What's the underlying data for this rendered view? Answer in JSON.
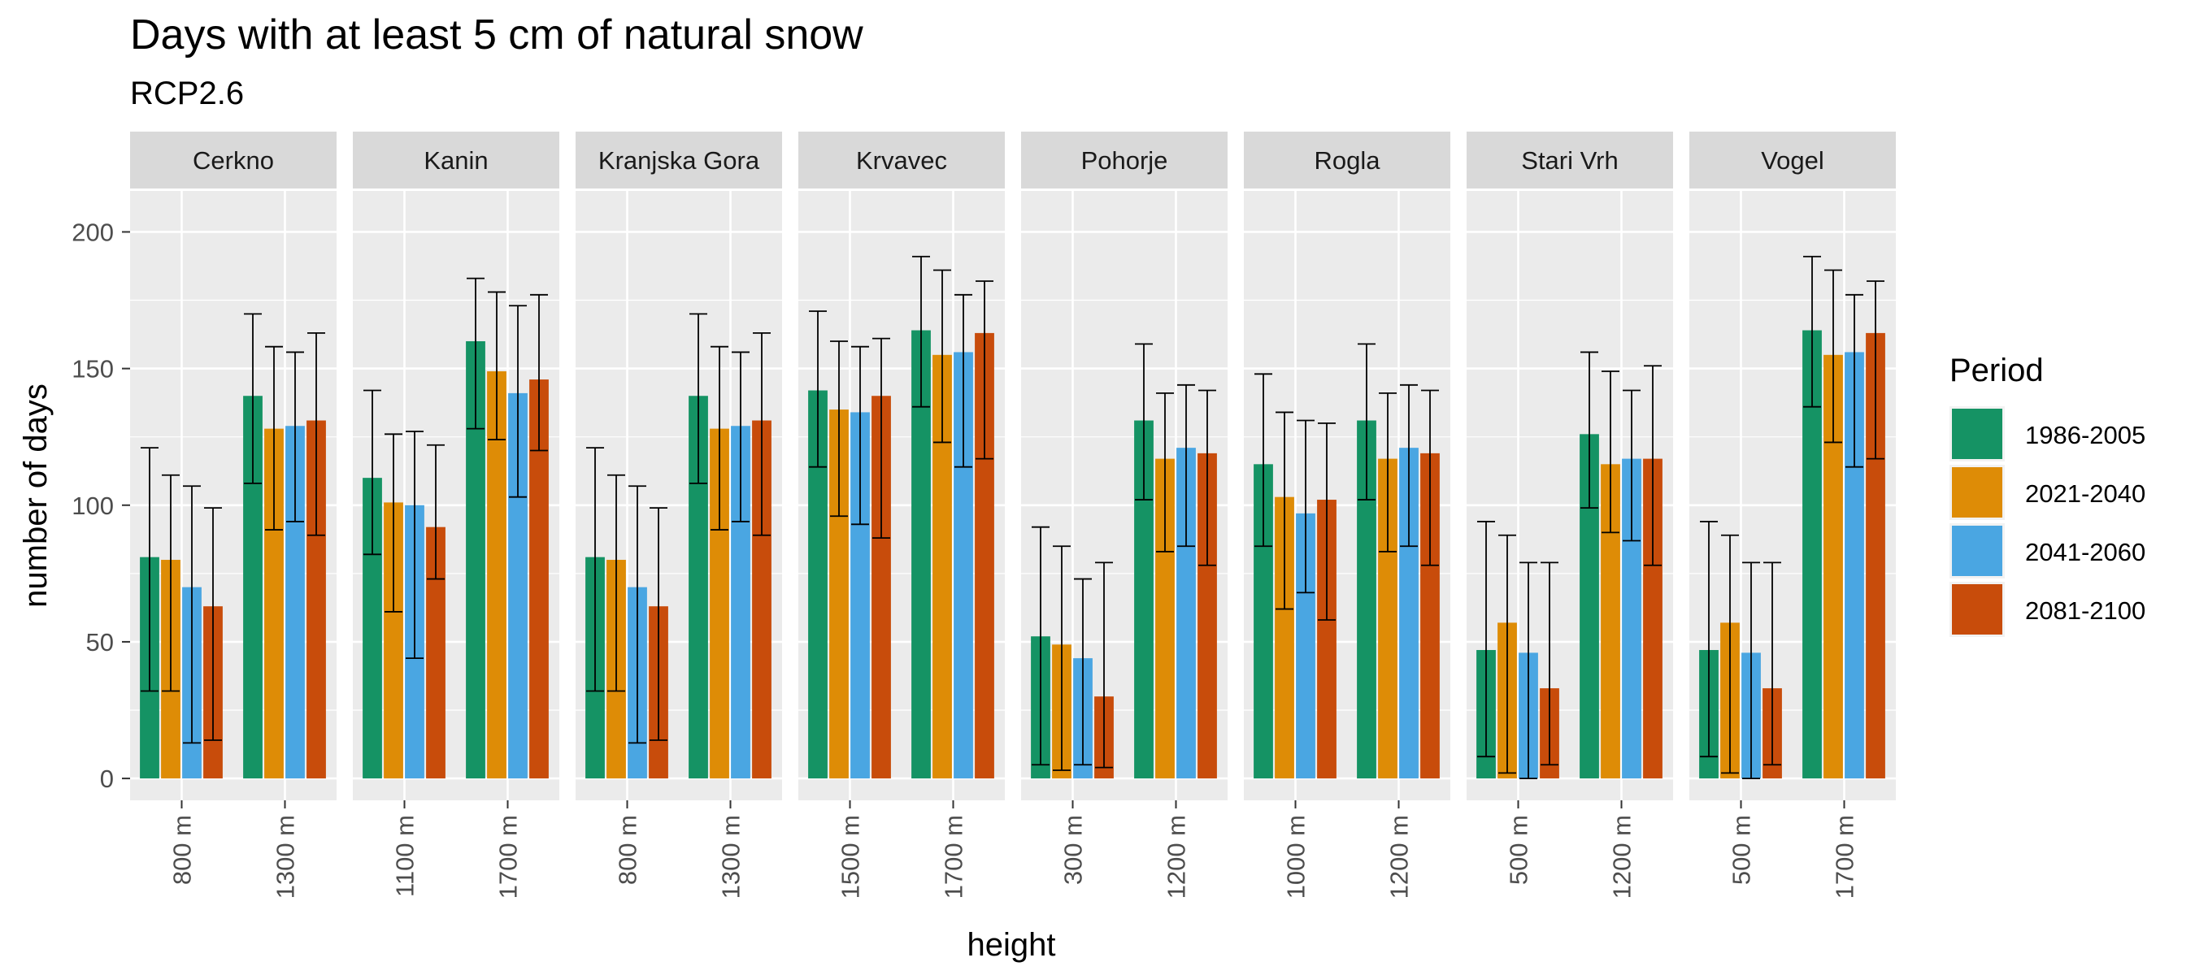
{
  "chart_data": {
    "type": "bar",
    "title": "Days with at least 5 cm of natural snow",
    "subtitle": "RCP2.6",
    "xlabel": "height",
    "ylabel": "number of days",
    "ylim": [
      -8,
      215
    ],
    "y_ticks": [
      0,
      50,
      100,
      150,
      200
    ],
    "grid": true,
    "legend": {
      "title": "Period",
      "placement": "right",
      "entries": [
        "1986-2005",
        "2021-2040",
        "2041-2060",
        "2081-2100"
      ],
      "colors": [
        "#159364",
        "#de8c06",
        "#4aa6e2",
        "#c84c0b"
      ]
    },
    "facets": [
      {
        "name": "Cerkno",
        "groups": [
          {
            "label": "800 m",
            "values": [
              81,
              80,
              70,
              63
            ],
            "lower": [
              32,
              32,
              13,
              14
            ],
            "upper": [
              121,
              111,
              107,
              99
            ]
          },
          {
            "label": "1300 m",
            "values": [
              140,
              128,
              129,
              131
            ],
            "lower": [
              108,
              91,
              94,
              89
            ],
            "upper": [
              170,
              158,
              156,
              163
            ]
          }
        ]
      },
      {
        "name": "Kanin",
        "groups": [
          {
            "label": "1100 m",
            "values": [
              110,
              101,
              100,
              92
            ],
            "lower": [
              82,
              61,
              44,
              73
            ],
            "upper": [
              142,
              126,
              127,
              122
            ]
          },
          {
            "label": "1700 m",
            "values": [
              160,
              149,
              141,
              146
            ],
            "lower": [
              128,
              124,
              103,
              120
            ],
            "upper": [
              183,
              178,
              173,
              177
            ]
          }
        ]
      },
      {
        "name": "Kranjska Gora",
        "groups": [
          {
            "label": "800 m",
            "values": [
              81,
              80,
              70,
              63
            ],
            "lower": [
              32,
              32,
              13,
              14
            ],
            "upper": [
              121,
              111,
              107,
              99
            ]
          },
          {
            "label": "1300 m",
            "values": [
              140,
              128,
              129,
              131
            ],
            "lower": [
              108,
              91,
              94,
              89
            ],
            "upper": [
              170,
              158,
              156,
              163
            ]
          }
        ]
      },
      {
        "name": "Krvavec",
        "groups": [
          {
            "label": "1500 m",
            "values": [
              142,
              135,
              134,
              140
            ],
            "lower": [
              114,
              96,
              93,
              88
            ],
            "upper": [
              171,
              160,
              158,
              161
            ]
          },
          {
            "label": "1700 m",
            "values": [
              164,
              155,
              156,
              163
            ],
            "lower": [
              136,
              123,
              114,
              117
            ],
            "upper": [
              191,
              186,
              177,
              182
            ]
          }
        ]
      },
      {
        "name": "Pohorje",
        "groups": [
          {
            "label": "300 m",
            "values": [
              52,
              49,
              44,
              30
            ],
            "lower": [
              5,
              3,
              5,
              4
            ],
            "upper": [
              92,
              85,
              73,
              79
            ]
          },
          {
            "label": "1200 m",
            "values": [
              131,
              117,
              121,
              119
            ],
            "lower": [
              102,
              83,
              85,
              78
            ],
            "upper": [
              159,
              141,
              144,
              142
            ]
          }
        ]
      },
      {
        "name": "Rogla",
        "groups": [
          {
            "label": "1000 m",
            "values": [
              115,
              103,
              97,
              102
            ],
            "lower": [
              85,
              62,
              68,
              58
            ],
            "upper": [
              148,
              134,
              131,
              130
            ]
          },
          {
            "label": "1200 m",
            "values": [
              131,
              117,
              121,
              119
            ],
            "lower": [
              102,
              83,
              85,
              78
            ],
            "upper": [
              159,
              141,
              144,
              142
            ]
          }
        ]
      },
      {
        "name": "Stari Vrh",
        "groups": [
          {
            "label": "500 m",
            "values": [
              47,
              57,
              46,
              33
            ],
            "lower": [
              8,
              2,
              0,
              5
            ],
            "upper": [
              94,
              89,
              79,
              79
            ]
          },
          {
            "label": "1200 m",
            "values": [
              126,
              115,
              117,
              117
            ],
            "lower": [
              99,
              90,
              87,
              78
            ],
            "upper": [
              156,
              149,
              142,
              151
            ]
          }
        ]
      },
      {
        "name": "Vogel",
        "groups": [
          {
            "label": "500 m",
            "values": [
              47,
              57,
              46,
              33
            ],
            "lower": [
              8,
              2,
              0,
              5
            ],
            "upper": [
              94,
              89,
              79,
              79
            ]
          },
          {
            "label": "1700 m",
            "values": [
              164,
              155,
              156,
              163
            ],
            "lower": [
              136,
              123,
              114,
              117
            ],
            "upper": [
              191,
              186,
              177,
              182
            ]
          }
        ]
      }
    ]
  }
}
